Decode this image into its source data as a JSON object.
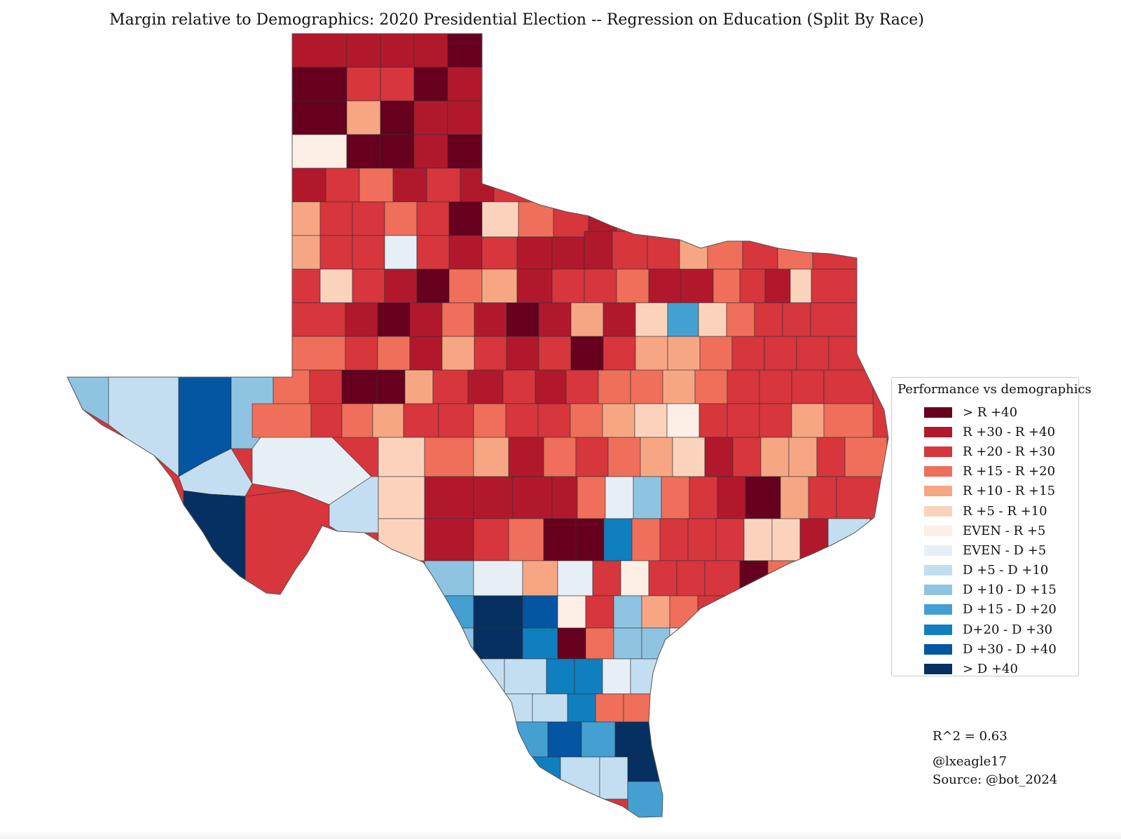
{
  "title": "Margin relative to Demographics: 2020 Presidential Election -- Regression on Education (Split By Race)",
  "legend": {
    "title": "Performance vs demographics",
    "items": [
      {
        "label": "> R +40",
        "color": "#67001f"
      },
      {
        "label": "R +30 - R +40",
        "color": "#b2182b"
      },
      {
        "label": "R +20 - R +30",
        "color": "#d6363c"
      },
      {
        "label": "R +15 - R +20",
        "color": "#ef6f5a"
      },
      {
        "label": "R +10 - R +15",
        "color": "#f7a684"
      },
      {
        "label": "R +5 - R +10",
        "color": "#fbd3bd"
      },
      {
        "label": "EVEN - R +5",
        "color": "#fdeee6"
      },
      {
        "label": "EVEN - D +5",
        "color": "#e6eff6"
      },
      {
        "label": "D +5 - D +10",
        "color": "#c3def0"
      },
      {
        "label": "D +10 - D +15",
        "color": "#8ec4e2"
      },
      {
        "label": "D +15 - D +20",
        "color": "#45a0d2"
      },
      {
        "label": "D+20 - D +30",
        "color": "#0f7fc0"
      },
      {
        "label": "D +30 - D +40",
        "color": "#0456a2"
      },
      {
        "label": "> D +40",
        "color": "#053061"
      }
    ]
  },
  "stats": {
    "r_squared": "R^2 = 0.63",
    "author": "@lxeagle17",
    "source": "Source: @bot_2024"
  }
}
